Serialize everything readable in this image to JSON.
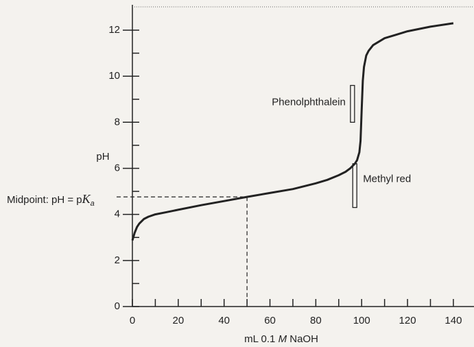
{
  "chart_data": {
    "type": "line",
    "x_label_parts": [
      "mL 0.1 ",
      "M",
      " NaOH"
    ],
    "y_label": "pH",
    "color": "#222222",
    "x": [
      0,
      1,
      2,
      3,
      5,
      7,
      10,
      15,
      20,
      30,
      40,
      50,
      60,
      70,
      80,
      85,
      90,
      93,
      95,
      97,
      98,
      99,
      99.5,
      100,
      100.5,
      101,
      102,
      103,
      105,
      110,
      115,
      120,
      130,
      140
    ],
    "series": [
      {
        "color": "#222222",
        "values": [
          2.87,
          3.2,
          3.45,
          3.6,
          3.8,
          3.9,
          4.0,
          4.1,
          4.2,
          4.4,
          4.58,
          4.76,
          4.93,
          5.1,
          5.35,
          5.5,
          5.7,
          5.85,
          6.0,
          6.2,
          6.35,
          6.7,
          7.2,
          8.5,
          9.8,
          10.4,
          10.9,
          11.1,
          11.35,
          11.65,
          11.8,
          11.95,
          12.15,
          12.3
        ]
      }
    ],
    "xlim": [
      0,
      149
    ],
    "ylim": [
      0,
      13.1
    ],
    "xticks": [
      0,
      20,
      40,
      60,
      80,
      100,
      120,
      140
    ],
    "yticks": [
      0,
      2,
      4,
      6,
      8,
      10,
      12
    ],
    "xminor_ticks": [
      10,
      30,
      50,
      70,
      90,
      110,
      130
    ],
    "yminor_ticks": [
      1,
      3,
      5,
      7,
      9,
      11
    ],
    "indicators": [
      {
        "name": "Phenolphthalein",
        "x": 96,
        "ymin": 8.0,
        "ymax": 9.6
      },
      {
        "name": "Methyl red",
        "x": 97,
        "ymin": 4.3,
        "ymax": 6.2
      }
    ],
    "midpoint": {
      "x": 50,
      "y": 4.76,
      "label_parts": [
        "Midpoint: pH = p",
        "K",
        "a"
      ]
    }
  }
}
